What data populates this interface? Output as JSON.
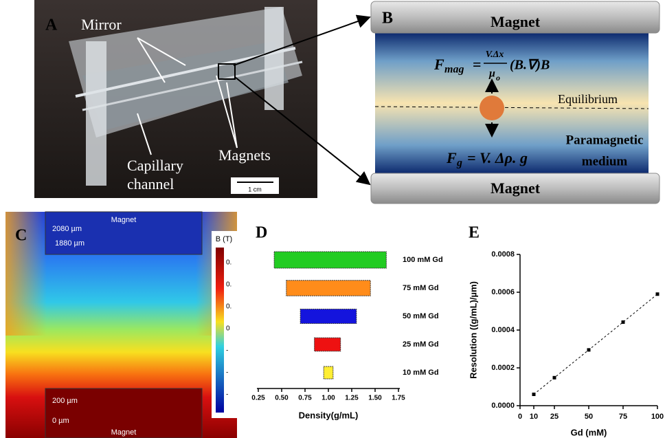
{
  "panel_a": {
    "label": "A",
    "mirror": "Mirror",
    "capillary": [
      "Capillary",
      "channel"
    ],
    "magnets": "Magnets",
    "scale": "1 cm"
  },
  "panel_b": {
    "label": "B",
    "magnet_top": "Magnet",
    "magnet_bottom": "Magnet",
    "equilibrium": "Equilibrium",
    "medium": [
      "Paramagnetic",
      "medium"
    ],
    "formula_mag": {
      "lhs": "F",
      "lhs_sub": "mag",
      "eq": "=",
      "num": "V.Δx",
      "den": "μ",
      "den_sub": "o",
      "rest": "(B.∇)B"
    },
    "formula_g": {
      "lhs": "F",
      "lhs_sub": "g",
      "rhs": "= V. Δρ. g"
    }
  },
  "panel_c": {
    "label": "C",
    "magnet_top": "Magnet",
    "magnet_bottom": "Magnet",
    "depths": [
      "2080 µm",
      "1880 µm",
      "200 µm",
      "0 µm"
    ],
    "colorbar_title": "B (T)",
    "colorbar_ticks": [
      "0.",
      "0.",
      "0.",
      "0",
      "-",
      "-",
      "-"
    ]
  },
  "chart_data": [
    {
      "type": "range-bar",
      "panel_label": "D",
      "categories": [
        "100 mM Gd",
        "75 mM Gd",
        "50 mM Gd",
        "25 mM Gd",
        "10 mM Gd"
      ],
      "low": [
        0.42,
        0.55,
        0.7,
        0.85,
        0.95
      ],
      "high": [
        1.62,
        1.45,
        1.3,
        1.13,
        1.05
      ],
      "colors": [
        "#22cc22",
        "#ff8c1a",
        "#1414dd",
        "#ee1111",
        "#ffee33"
      ],
      "xlabel": "Density(g/mL)",
      "xlim": [
        0.25,
        1.75
      ],
      "xticks": [
        0.25,
        {
          "value": 0.5,
          "label": "0.50"
        },
        0.75,
        {
          "value": 1,
          "label": "1.00"
        },
        1.25,
        {
          "value": 1.5,
          "label": "1.50"
        },
        1.75
      ]
    },
    {
      "type": "line",
      "panel_label": "E",
      "x": [
        10,
        25,
        50,
        75,
        100
      ],
      "values": [
        6e-05,
        0.000148,
        0.000295,
        0.000442,
        0.00059
      ],
      "color": "#000000",
      "xlabel": "Gd (mM)",
      "ylabel": "Resolution ((g/mL)/µm)",
      "xlim": [
        0,
        100
      ],
      "ylim": [
        0,
        0.0008
      ],
      "xticks": [
        0,
        10,
        25,
        50,
        75,
        100
      ],
      "yticks": [
        {
          "value": 0,
          "label": "0.0000"
        },
        {
          "value": 0.0002,
          "label": "0.0002"
        },
        {
          "value": 0.0004,
          "label": "0.0004"
        },
        {
          "value": 0.0006,
          "label": "0.0006"
        },
        {
          "value": 0.0008,
          "label": "0.0008"
        }
      ]
    }
  ]
}
